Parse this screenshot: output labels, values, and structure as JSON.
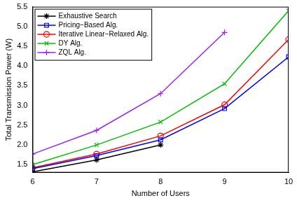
{
  "chart_data": {
    "type": "line",
    "x_label": "Number of Users",
    "y_label": "Total Transmission Power (W)",
    "x": [
      6,
      7,
      8,
      9,
      10
    ],
    "xlim": [
      6,
      10
    ],
    "xticks": [
      6,
      7,
      8,
      9,
      10
    ],
    "ylim": [
      1.3,
      5.5
    ],
    "yticks": [
      1.5,
      2,
      2.5,
      3,
      3.5,
      4,
      4.5,
      5,
      5.5
    ],
    "grid": false,
    "legend": "upper left",
    "series": [
      {
        "name": "Exhaustive Search",
        "color": "#000000",
        "marker": "star",
        "values": [
          1.32,
          1.62,
          2.0,
          null,
          null
        ]
      },
      {
        "name": "Pricing−Based Alg.",
        "color": "#0000ff",
        "marker": "square",
        "values": [
          1.4,
          1.73,
          2.13,
          2.92,
          4.23
        ]
      },
      {
        "name": "Iterative Linear−Relaxed Alg.",
        "color": "#ff0000",
        "marker": "circle",
        "values": [
          1.42,
          1.77,
          2.23,
          3.02,
          4.67
        ]
      },
      {
        "name": "DY Alg.",
        "color": "#00bf00",
        "marker": "x",
        "values": [
          1.5,
          2.0,
          2.58,
          3.55,
          5.4
        ]
      },
      {
        "name": "ZQL Alg.",
        "color": "#a020f0",
        "marker": "cross",
        "values": [
          1.77,
          2.37,
          3.3,
          4.85,
          null
        ]
      }
    ]
  }
}
